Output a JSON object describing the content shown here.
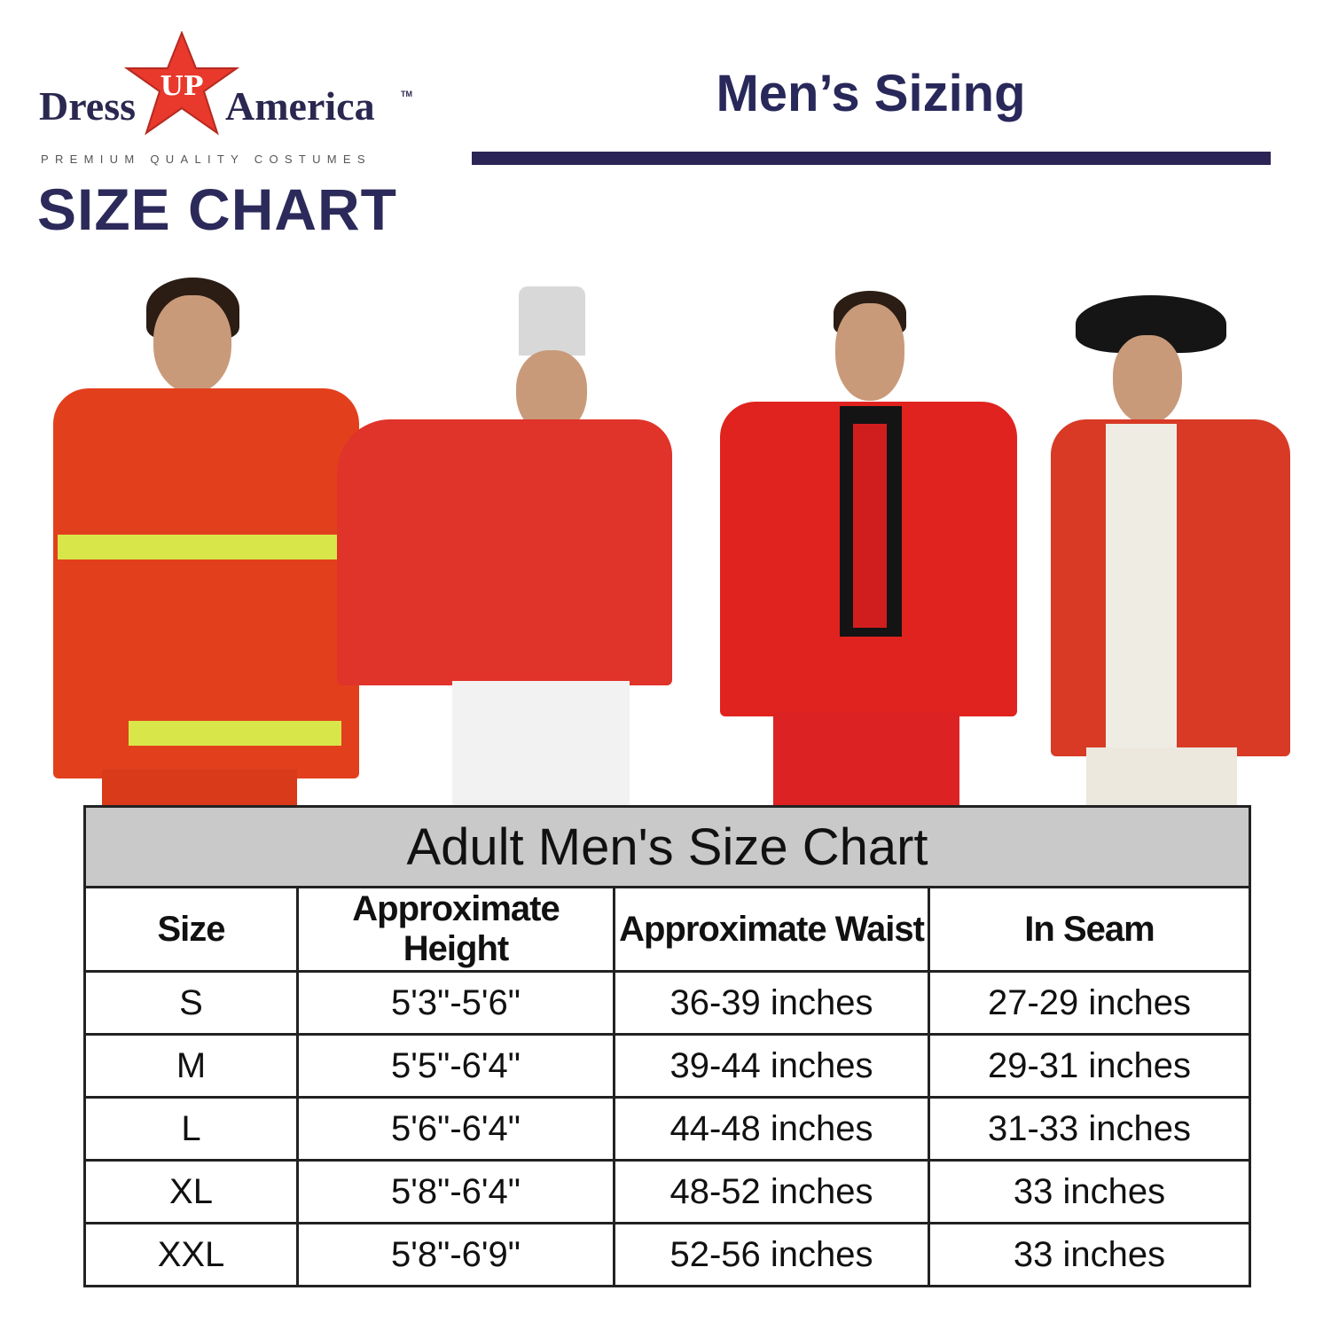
{
  "logo": {
    "brand_left": "Dress",
    "brand_star": "UP",
    "brand_right": "America",
    "trademark": "TM",
    "tagline": "PREMIUM QUALITY COSTUMES"
  },
  "size_chart_label": "SIZE CHART",
  "heading": "Men’s Sizing",
  "colors": {
    "navy": "#2b2556",
    "star_red": "#e8392c",
    "costume_red": "#e02a1f",
    "table_title_bg": "#c9c9c9"
  },
  "images": [
    "firefighter-costume",
    "toy-soldier-costume",
    "red-suit-costume",
    "revolutionary-redcoat-costume"
  ],
  "table": {
    "title": "Adult Men's Size Chart",
    "headers": [
      "Size",
      "Approximate Height",
      "Approximate Waist",
      "In Seam"
    ],
    "rows": [
      [
        "S",
        "5'3\"-5'6\"",
        "36-39 inches",
        "27-29 inches"
      ],
      [
        "M",
        "5'5\"-6'4\"",
        "39-44 inches",
        "29-31 inches"
      ],
      [
        "L",
        "5'6\"-6'4\"",
        "44-48 inches",
        "31-33 inches"
      ],
      [
        "XL",
        "5'8\"-6'4\"",
        "48-52 inches",
        "33 inches"
      ],
      [
        "XXL",
        "5'8\"-6'9\"",
        "52-56 inches",
        "33 inches"
      ]
    ]
  }
}
